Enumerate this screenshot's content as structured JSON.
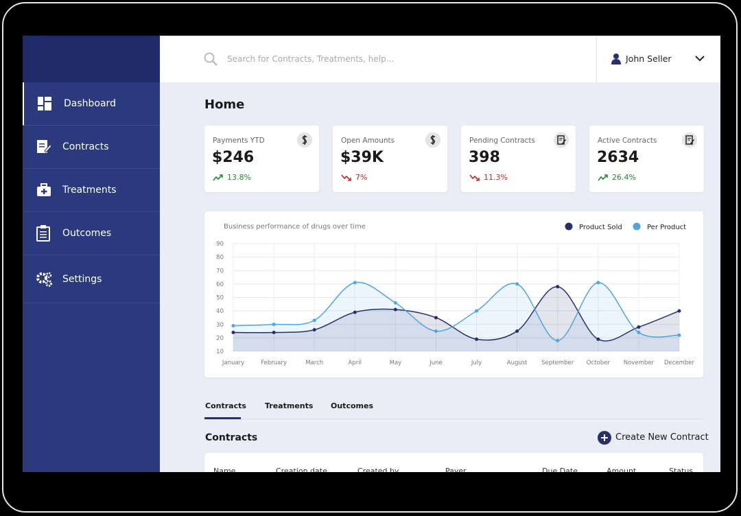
{
  "search": {
    "placeholder": "Search for Contracts, Treatments, help..."
  },
  "user": {
    "name": "John Seller"
  },
  "nav": [
    {
      "label": "Dashboard"
    },
    {
      "label": "Contracts"
    },
    {
      "label": "Treatments"
    },
    {
      "label": "Outcomes"
    },
    {
      "label": "Settings"
    }
  ],
  "page_title": "Home",
  "cards": [
    {
      "label": "Payments YTD",
      "value": "$246",
      "change": "13.8%",
      "trend": "up"
    },
    {
      "label": "Open Amounts",
      "value": "$39K",
      "change": "7%",
      "trend": "down"
    },
    {
      "label": "Pending Contracts",
      "value": "398",
      "change": "11.3%",
      "trend": "down"
    },
    {
      "label": "Active Contracts",
      "value": "2634",
      "change": "26.4%",
      "trend": "up"
    }
  ],
  "chart_data": {
    "type": "line",
    "title": "Business performance of drugs over time",
    "categories": [
      "January",
      "February",
      "March",
      "April",
      "May",
      "June",
      "July",
      "August",
      "September",
      "October",
      "November",
      "December"
    ],
    "series": [
      {
        "name": "Product Sold",
        "color": "#27306b",
        "values": [
          24,
          24,
          26,
          39,
          41,
          35,
          19,
          25,
          58,
          19,
          28,
          40
        ]
      },
      {
        "name": "Per Product",
        "color": "#4ea5e0",
        "values": [
          29,
          30,
          33,
          61,
          46,
          25,
          40,
          60,
          18,
          61,
          24,
          22
        ]
      }
    ],
    "ylim": [
      10,
      90
    ],
    "yticks": [
      10,
      20,
      30,
      40,
      50,
      60,
      70,
      80,
      90
    ],
    "grid": true,
    "legend": "top-right"
  },
  "tabs": [
    "Contracts",
    "Treatments",
    "Outcomes"
  ],
  "section_title": "Contracts",
  "action": "Create New Contract",
  "table": {
    "columns": [
      "Name",
      "Creation date",
      "Created by",
      "Payer",
      "Due Date",
      "Amount",
      "Status"
    ]
  }
}
